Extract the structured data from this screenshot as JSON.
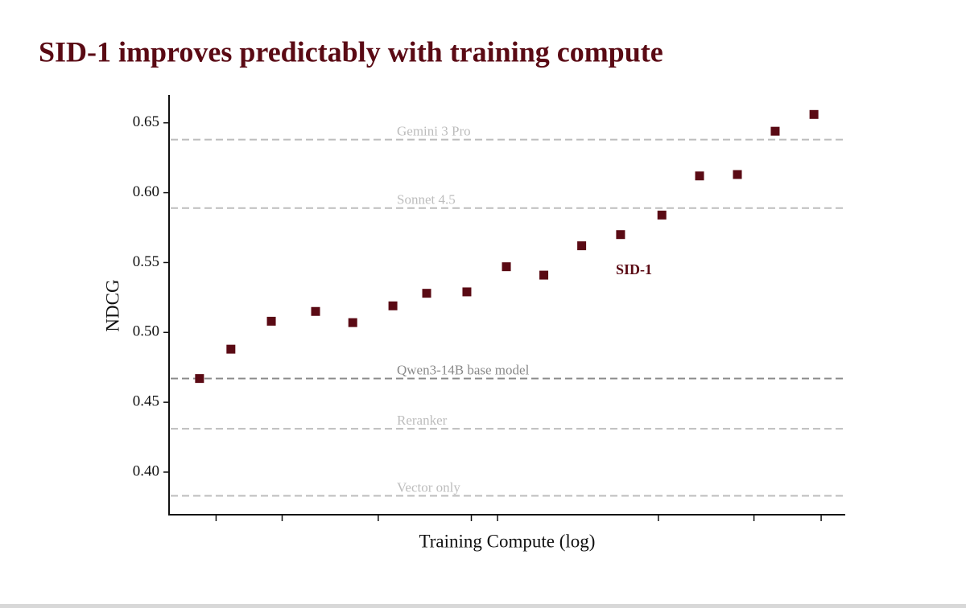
{
  "chart_data": {
    "type": "scatter",
    "title": "SID-1 improves predictably with training compute",
    "x_label": "Training Compute (log)",
    "y_label": "NDCG",
    "x_scale": "log",
    "xlim": [
      0.0966,
      11.87
    ],
    "xticks": [
      0.135,
      0.216,
      0.428,
      0.83,
      1,
      3.14,
      6.2,
      10
    ],
    "ylim": [
      0.3695,
      0.67
    ],
    "yticks": [
      {
        "value": 0.4,
        "label": "0.40"
      },
      0.45,
      {
        "value": 0.5,
        "label": "0.50"
      },
      0.55,
      {
        "value": 0.6,
        "label": "0.60"
      },
      0.65
    ],
    "series": [
      {
        "name": "SID-1",
        "color": "#5a0a14",
        "x": [
          0.12,
          0.15,
          0.2,
          0.274,
          0.357,
          0.475,
          0.604,
          0.804,
          1.065,
          1.39,
          1.82,
          2.4,
          3.22,
          4.21,
          5.51,
          7.21,
          9.5
        ],
        "values": [
          0.467,
          0.488,
          0.508,
          0.515,
          0.507,
          0.519,
          0.528,
          0.529,
          0.547,
          0.541,
          0.562,
          0.57,
          0.584,
          0.612,
          0.613,
          0.644,
          0.656
        ]
      }
    ],
    "reference_lines": [
      {
        "label": "Gemini 3 Pro",
        "value": 0.638,
        "color": "#bdbdbd"
      },
      {
        "label": "Sonnet 4.5",
        "value": 0.589,
        "color": "#bdbdbd"
      },
      {
        "label": "Qwen3-14B base model",
        "value": 0.467,
        "color": "#8a8a8a"
      },
      {
        "label": "Reranker",
        "value": 0.431,
        "color": "#bdbdbd"
      },
      {
        "label": "Vector only",
        "value": 0.383,
        "color": "#bdbdbd"
      }
    ]
  }
}
